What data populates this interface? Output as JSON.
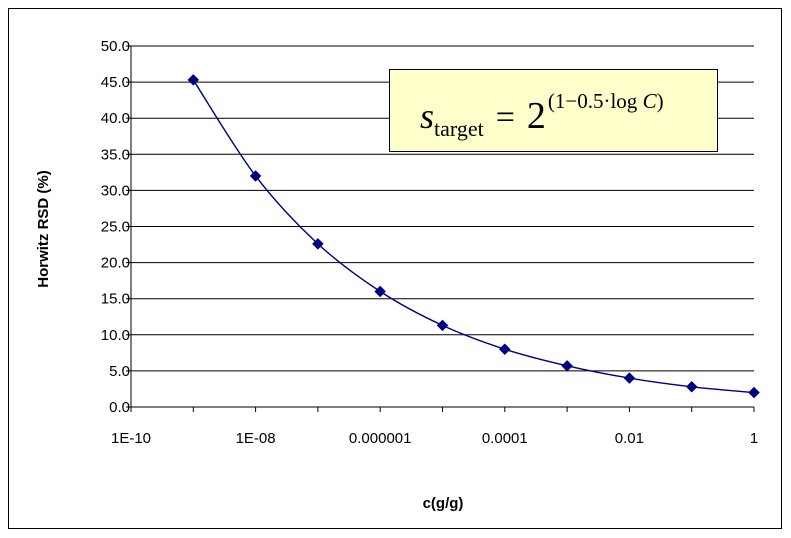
{
  "chart_data": {
    "type": "scatter",
    "title": "",
    "xlabel": "c(g/g)",
    "ylabel": "Horwitz RSD (%)",
    "x_scale": "log",
    "xlim": [
      1e-10,
      1
    ],
    "ylim": [
      0,
      50
    ],
    "grid": {
      "horizontal": true,
      "vertical": false
    },
    "legend": "none",
    "x_tick_labels": [
      "1E-10",
      "1E-08",
      "0.000001",
      "0.0001",
      "0.01",
      "1"
    ],
    "x_tick_values": [
      1e-10,
      1e-08,
      1e-06,
      0.0001,
      0.01,
      1
    ],
    "y_tick_labels": [
      "0.0",
      "5.0",
      "10.0",
      "15.0",
      "20.0",
      "25.0",
      "30.0",
      "35.0",
      "40.0",
      "45.0",
      "50.0"
    ],
    "y_tick_values": [
      0,
      5,
      10,
      15,
      20,
      25,
      30,
      35,
      40,
      45,
      50
    ],
    "series": [
      {
        "x": [
          1e-09,
          1e-08,
          1e-07,
          1e-06,
          1e-05,
          0.0001,
          0.001,
          0.01,
          0.1,
          1
        ],
        "y": [
          45.3,
          32.0,
          22.6,
          16.0,
          11.3,
          8.0,
          5.7,
          4.0,
          2.8,
          2.0
        ],
        "color": "#000080",
        "marker": "diamond",
        "line": "smooth"
      }
    ],
    "annotation": {
      "s": "s",
      "sub": "target",
      "eq": "=",
      "base": "2",
      "exp_prefix": "(1−0.5·log ",
      "exp_var": "C",
      "exp_suffix": ")",
      "background": "#ffffcc"
    }
  }
}
